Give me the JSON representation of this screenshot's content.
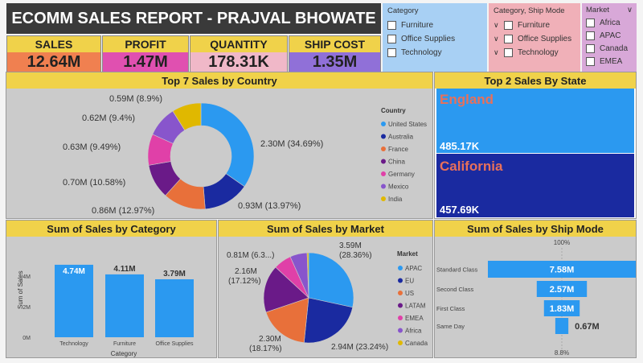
{
  "header": {
    "title": "ECOMM SALES REPORT - PRAJVAL BHOWATE"
  },
  "kpis": [
    {
      "label": "SALES",
      "value": "12.64M",
      "bg": "#f08050"
    },
    {
      "label": "PROFIT",
      "value": "1.47M",
      "bg": "#e050b0"
    },
    {
      "label": "QUANTITY",
      "value": "178.31K",
      "bg": "#f0b8c8"
    },
    {
      "label": "SHIP COST",
      "value": "1.35M",
      "bg": "#9070d8"
    }
  ],
  "slicers": {
    "category": {
      "title": "Category",
      "items": [
        "Furniture",
        "Office Supplies",
        "Technology"
      ]
    },
    "ship_mode": {
      "title": "Category, Ship Mode",
      "items": [
        "Furniture",
        "Office Supplies",
        "Technology"
      ]
    },
    "market": {
      "title": "Market",
      "items": [
        "Africa",
        "APAC",
        "Canada",
        "EMEA"
      ]
    }
  },
  "colors": {
    "blue": "#2b99f0",
    "navy": "#1a2aa0",
    "orange": "#e8703a",
    "purple": "#6a1a88",
    "pink": "#e040a8",
    "violet": "#8855cc",
    "gold": "#e0b800",
    "state_red": "#e8705a"
  },
  "country_chart": {
    "title": "Top 7 Sales by Country",
    "legend_title": "Country",
    "labels": [
      "2.30M (34.69%)",
      "0.93M (13.97%)",
      "0.86M (12.97%)",
      "0.70M (10.58%)",
      "0.63M (9.49%)",
      "0.62M (9.4%)",
      "0.59M (8.9%)"
    ]
  },
  "state_panel": {
    "title": "Top 2 Sales By State"
  },
  "category_chart": {
    "title": "Sum of Sales by Category"
  },
  "market_chart": {
    "title": "Sum of Sales by Market",
    "legend_title": "Market",
    "labels": [
      {
        "l1": "3.59M",
        "l2": "(28.36%)"
      },
      {
        "l1": "2.94M (23.24%)",
        "l2": ""
      },
      {
        "l1": "2.30M",
        "l2": "(18.17%)"
      },
      {
        "l1": "2.16M",
        "l2": "(17.12%)"
      },
      {
        "l1": "0.81M (6.3...)",
        "l2": ""
      }
    ]
  },
  "shipmode_chart": {
    "title": "Sum of Sales by Ship Mode",
    "top_pct": "100%",
    "bottom_pct": "8.8%"
  },
  "chart_data": [
    {
      "type": "pie",
      "title": "Top 7 Sales by Country",
      "categories": [
        "United States",
        "Australia",
        "France",
        "China",
        "Germany",
        "Mexico",
        "India"
      ],
      "values": [
        2.3,
        0.93,
        0.86,
        0.7,
        0.63,
        0.62,
        0.59
      ],
      "percents": [
        34.69,
        13.97,
        12.97,
        10.58,
        9.49,
        9.4,
        8.9
      ],
      "legend": "right"
    },
    {
      "type": "bar",
      "title": "Top 2 Sales By State",
      "categories": [
        "England",
        "California"
      ],
      "values": [
        "485.17K",
        "457.69K"
      ]
    },
    {
      "type": "bar",
      "title": "Sum of Sales by Category",
      "categories": [
        "Technology",
        "Furniture",
        "Office Supplies"
      ],
      "values": [
        4.74,
        4.11,
        3.79
      ],
      "value_labels": [
        "4.74M",
        "4.11M",
        "3.79M"
      ],
      "xlabel": "Category",
      "ylabel": "Sum of Sales",
      "yticks": [
        "0M",
        "2M",
        "4M"
      ],
      "ylim": [
        0,
        5
      ]
    },
    {
      "type": "pie",
      "title": "Sum of Sales by Market",
      "categories": [
        "APAC",
        "EU",
        "US",
        "LATAM",
        "EMEA",
        "Africa",
        "Canada"
      ],
      "values": [
        3.59,
        2.94,
        2.3,
        2.16,
        0.81,
        0.78,
        0.07
      ],
      "legend": "right"
    },
    {
      "type": "bar",
      "title": "Sum of Sales by Ship Mode",
      "categories": [
        "Standard Class",
        "Second Class",
        "First Class",
        "Same Day"
      ],
      "values": [
        7.58,
        2.57,
        1.83,
        0.67
      ],
      "value_labels": [
        "7.58M",
        "2.57M",
        "1.83M",
        "0.67M"
      ]
    }
  ]
}
